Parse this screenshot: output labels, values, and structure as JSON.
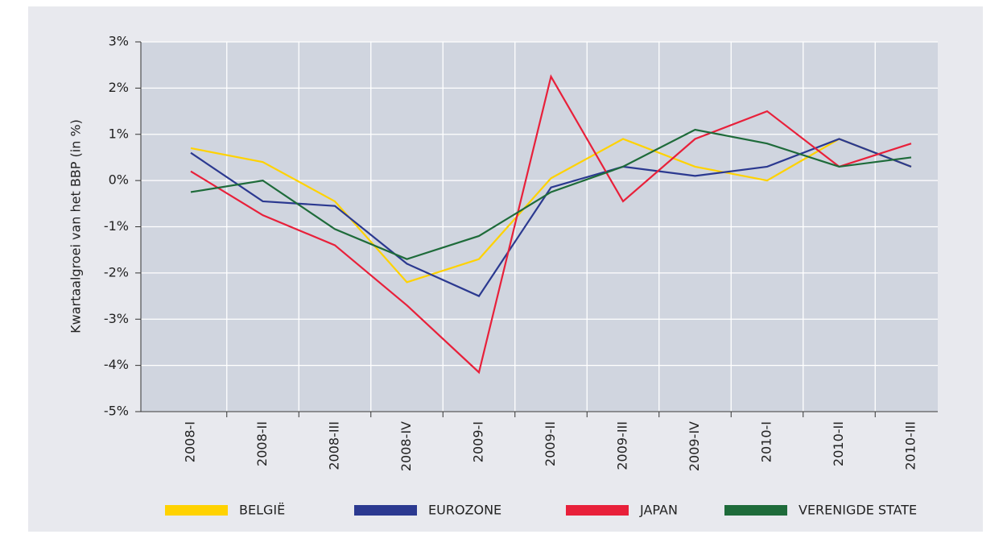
{
  "chart_data": {
    "type": "line",
    "y_label": "Kwartaalgroei van het BBP (in %)",
    "categories": [
      "2008-I",
      "2008-II",
      "2008-III",
      "2008-IV",
      "2009-I",
      "2009-II",
      "2009-III",
      "2009-IV",
      "2010-I",
      "2010-II",
      "2010-III"
    ],
    "series": [
      {
        "name": "BELGIË",
        "color": "#ffd200",
        "values": [
          0.7,
          0.4,
          -0.45,
          -2.2,
          -1.7,
          0.05,
          0.9,
          0.3,
          0.0,
          0.9,
          0.3
        ]
      },
      {
        "name": "EUROZONE",
        "color": "#2b3990",
        "values": [
          0.6,
          -0.45,
          -0.55,
          -1.8,
          -2.5,
          -0.15,
          0.3,
          0.1,
          0.3,
          0.9,
          0.3
        ]
      },
      {
        "name": "JAPAN",
        "color": "#e8203a",
        "values": [
          0.2,
          -0.75,
          -1.4,
          -2.7,
          -4.15,
          2.25,
          -0.45,
          0.9,
          1.5,
          0.3,
          0.8
        ]
      },
      {
        "name": "VERENIGDE STATE",
        "color": "#1e6b3a",
        "values": [
          -0.25,
          0.0,
          -1.05,
          -1.7,
          -1.2,
          -0.25,
          0.3,
          1.1,
          0.8,
          0.3,
          0.5
        ]
      }
    ],
    "ylim": [
      -5,
      3
    ],
    "yticks": [
      {
        "value": -5,
        "label": "-5%"
      },
      {
        "value": -4,
        "label": "-4%"
      },
      {
        "value": -3,
        "label": "-3%"
      },
      {
        "value": -2,
        "label": "-2%"
      },
      {
        "value": -1,
        "label": "-1%"
      },
      {
        "value": 0,
        "label": "0%"
      },
      {
        "value": 1,
        "label": "1%"
      },
      {
        "value": 2,
        "label": "2%"
      },
      {
        "value": 3,
        "label": "3%"
      }
    ],
    "grid": true
  }
}
